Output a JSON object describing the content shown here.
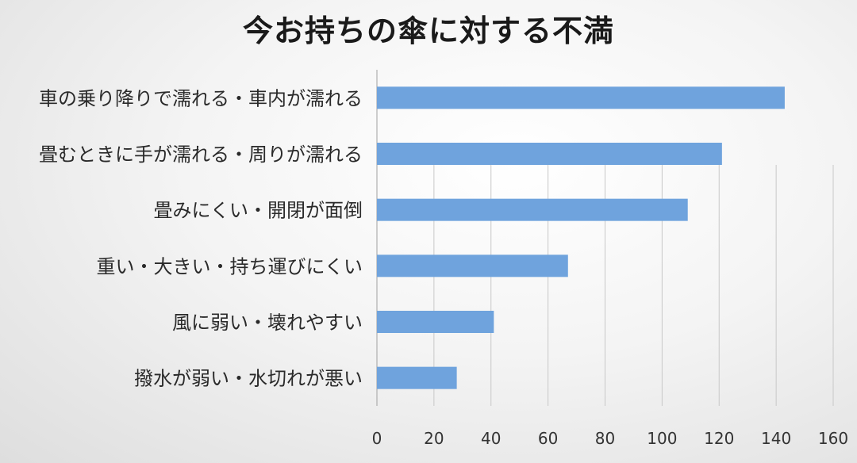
{
  "chart_data": {
    "type": "bar",
    "orientation": "horizontal",
    "title": "今お持ちの傘に対する不満",
    "categories": [
      "車の乗り降りで濡れる・車内が濡れる",
      "畳むときに手が濡れる・周りが濡れる",
      "畳みにくい・開閉が面倒",
      "重い・大きい・持ち運びにくい",
      "風に弱い・壊れやすい",
      "撥水が弱い・水切れが悪い"
    ],
    "values": [
      143,
      121,
      109,
      67,
      41,
      28
    ],
    "xlim": [
      0,
      160
    ],
    "xticks": [
      0,
      20,
      40,
      60,
      80,
      100,
      120,
      140,
      160
    ],
    "xlabel": "",
    "ylabel": "",
    "grid": true,
    "legend": "none",
    "bar_color": "#6fa3dd"
  }
}
